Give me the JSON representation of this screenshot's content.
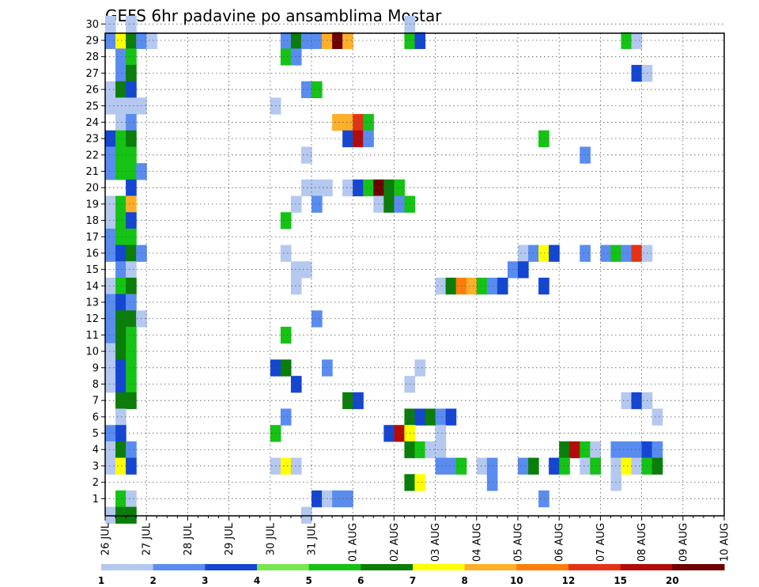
{
  "chart_data": {
    "type": "heatmap",
    "title": "GEFS 6hr padavine po ansamblima Mostar",
    "xlabel": "",
    "ylabel": "",
    "x_tick_labels": [
      "26 JUL",
      "27 JUL",
      "28 JUL",
      "29 JUL",
      "30 JUL",
      "31 JUL",
      "01 AUG",
      "02 AUG",
      "03 AUG",
      "04 AUG",
      "05 AUG",
      "06 AUG",
      "07 AUG",
      "08 AUG",
      "09 AUG",
      "10 AUG"
    ],
    "y_tick_labels": [
      "1",
      "2",
      "3",
      "4",
      "5",
      "6",
      "7",
      "8",
      "9",
      "10",
      "11",
      "12",
      "13",
      "14",
      "15",
      "16",
      "17",
      "18",
      "19",
      "20",
      "21",
      "22",
      "23",
      "24",
      "25",
      "26",
      "27",
      "28",
      "29",
      "30"
    ],
    "xlim_days": [
      0,
      15
    ],
    "ylim": [
      0,
      30
    ],
    "step_hours": 6,
    "grid": true,
    "legend_position": "bottom",
    "levels": [
      1,
      2,
      3,
      4,
      5,
      6,
      7,
      8,
      10,
      12,
      15,
      20
    ],
    "level_colors": [
      "#b4c8f0",
      "#5a8cf0",
      "#1446d2",
      "#78e650",
      "#14c314",
      "#0a7d0a",
      "#ffff00",
      "#ffaf28",
      "#ff7d0a",
      "#e63214",
      "#b40a0a",
      "#6e0000"
    ],
    "cells_format": "[step_index_6h, member_row, color_class]",
    "cells": [
      [
        0,
        29,
        2
      ],
      [
        1,
        29,
        7
      ],
      [
        2,
        29,
        6
      ],
      [
        3,
        29,
        2
      ],
      [
        4,
        29,
        1
      ],
      [
        17,
        29,
        2
      ],
      [
        18,
        29,
        6
      ],
      [
        19,
        29,
        2
      ],
      [
        20,
        29,
        2
      ],
      [
        21,
        29,
        8
      ],
      [
        22,
        29,
        12
      ],
      [
        23,
        29,
        8
      ],
      [
        29,
        29,
        5
      ],
      [
        30,
        29,
        3
      ],
      [
        50,
        29,
        5
      ],
      [
        51,
        29,
        1
      ],
      [
        0,
        30,
        1
      ],
      [
        2,
        30,
        1
      ],
      [
        29,
        30,
        1
      ],
      [
        1,
        28,
        2
      ],
      [
        2,
        28,
        5
      ],
      [
        17,
        28,
        5
      ],
      [
        18,
        28,
        2
      ],
      [
        1,
        27,
        2
      ],
      [
        2,
        27,
        6
      ],
      [
        51,
        27,
        3
      ],
      [
        52,
        27,
        1
      ],
      [
        0,
        26,
        1
      ],
      [
        1,
        26,
        6
      ],
      [
        2,
        26,
        3
      ],
      [
        19,
        26,
        2
      ],
      [
        20,
        26,
        5
      ],
      [
        0,
        25,
        1
      ],
      [
        1,
        25,
        1
      ],
      [
        2,
        25,
        1
      ],
      [
        3,
        25,
        1
      ],
      [
        16,
        25,
        1
      ],
      [
        1,
        24,
        1
      ],
      [
        2,
        24,
        2
      ],
      [
        22,
        24,
        8
      ],
      [
        23,
        24,
        8
      ],
      [
        24,
        24,
        10
      ],
      [
        25,
        24,
        5
      ],
      [
        0,
        23,
        3
      ],
      [
        1,
        23,
        5
      ],
      [
        2,
        23,
        6
      ],
      [
        23,
        23,
        3
      ],
      [
        24,
        23,
        11
      ],
      [
        25,
        23,
        2
      ],
      [
        42,
        23,
        5
      ],
      [
        0,
        22,
        2
      ],
      [
        1,
        22,
        5
      ],
      [
        2,
        22,
        5
      ],
      [
        19,
        22,
        1
      ],
      [
        46,
        22,
        2
      ],
      [
        0,
        21,
        2
      ],
      [
        1,
        21,
        5
      ],
      [
        2,
        21,
        5
      ],
      [
        3,
        21,
        2
      ],
      [
        2,
        20,
        3
      ],
      [
        19,
        20,
        1
      ],
      [
        20,
        20,
        1
      ],
      [
        21,
        20,
        1
      ],
      [
        23,
        20,
        1
      ],
      [
        24,
        20,
        3
      ],
      [
        25,
        20,
        5
      ],
      [
        26,
        20,
        12
      ],
      [
        27,
        20,
        6
      ],
      [
        28,
        20,
        5
      ],
      [
        0,
        19,
        1
      ],
      [
        1,
        19,
        5
      ],
      [
        2,
        19,
        8
      ],
      [
        18,
        19,
        1
      ],
      [
        20,
        19,
        2
      ],
      [
        26,
        19,
        1
      ],
      [
        27,
        19,
        6
      ],
      [
        28,
        19,
        2
      ],
      [
        29,
        19,
        5
      ],
      [
        0,
        18,
        1
      ],
      [
        1,
        18,
        5
      ],
      [
        2,
        18,
        3
      ],
      [
        17,
        18,
        5
      ],
      [
        0,
        17,
        2
      ],
      [
        1,
        17,
        5
      ],
      [
        2,
        17,
        5
      ],
      [
        0,
        16,
        2
      ],
      [
        1,
        16,
        3
      ],
      [
        2,
        16,
        6
      ],
      [
        3,
        16,
        2
      ],
      [
        17,
        16,
        1
      ],
      [
        40,
        16,
        1
      ],
      [
        41,
        16,
        2
      ],
      [
        42,
        16,
        7
      ],
      [
        43,
        16,
        3
      ],
      [
        46,
        16,
        2
      ],
      [
        48,
        16,
        2
      ],
      [
        49,
        16,
        5
      ],
      [
        50,
        16,
        2
      ],
      [
        51,
        16,
        10
      ],
      [
        52,
        16,
        1
      ],
      [
        1,
        15,
        2
      ],
      [
        2,
        15,
        1
      ],
      [
        18,
        15,
        1
      ],
      [
        19,
        15,
        1
      ],
      [
        39,
        15,
        2
      ],
      [
        40,
        15,
        3
      ],
      [
        0,
        14,
        1
      ],
      [
        1,
        14,
        5
      ],
      [
        2,
        14,
        6
      ],
      [
        18,
        14,
        1
      ],
      [
        32,
        14,
        1
      ],
      [
        33,
        14,
        6
      ],
      [
        34,
        14,
        9
      ],
      [
        35,
        14,
        8
      ],
      [
        36,
        14,
        5
      ],
      [
        37,
        14,
        2
      ],
      [
        38,
        14,
        3
      ],
      [
        42,
        14,
        3
      ],
      [
        0,
        13,
        2
      ],
      [
        1,
        13,
        3
      ],
      [
        2,
        13,
        2
      ],
      [
        0,
        12,
        2
      ],
      [
        1,
        12,
        6
      ],
      [
        2,
        12,
        6
      ],
      [
        3,
        12,
        1
      ],
      [
        20,
        12,
        2
      ],
      [
        0,
        11,
        2
      ],
      [
        1,
        11,
        6
      ],
      [
        2,
        11,
        5
      ],
      [
        17,
        11,
        5
      ],
      [
        0,
        10,
        1
      ],
      [
        1,
        10,
        6
      ],
      [
        2,
        10,
        5
      ],
      [
        0,
        9,
        1
      ],
      [
        1,
        9,
        3
      ],
      [
        2,
        9,
        5
      ],
      [
        16,
        9,
        3
      ],
      [
        17,
        9,
        6
      ],
      [
        21,
        9,
        2
      ],
      [
        30,
        9,
        1
      ],
      [
        0,
        8,
        1
      ],
      [
        1,
        8,
        3
      ],
      [
        2,
        8,
        5
      ],
      [
        18,
        8,
        3
      ],
      [
        29,
        8,
        1
      ],
      [
        1,
        7,
        6
      ],
      [
        2,
        7,
        6
      ],
      [
        23,
        7,
        6
      ],
      [
        24,
        7,
        3
      ],
      [
        50,
        7,
        1
      ],
      [
        51,
        7,
        3
      ],
      [
        52,
        7,
        1
      ],
      [
        1,
        6,
        1
      ],
      [
        17,
        6,
        2
      ],
      [
        29,
        6,
        6
      ],
      [
        30,
        6,
        3
      ],
      [
        31,
        6,
        6
      ],
      [
        32,
        6,
        2
      ],
      [
        33,
        6,
        3
      ],
      [
        53,
        6,
        1
      ],
      [
        0,
        5,
        2
      ],
      [
        1,
        5,
        3
      ],
      [
        16,
        5,
        5
      ],
      [
        27,
        5,
        3
      ],
      [
        28,
        5,
        11
      ],
      [
        29,
        5,
        7
      ],
      [
        32,
        5,
        1
      ],
      [
        0,
        4,
        1
      ],
      [
        1,
        4,
        6
      ],
      [
        2,
        4,
        2
      ],
      [
        29,
        4,
        6
      ],
      [
        30,
        4,
        5
      ],
      [
        31,
        4,
        1
      ],
      [
        32,
        4,
        1
      ],
      [
        44,
        4,
        6
      ],
      [
        45,
        4,
        11
      ],
      [
        46,
        4,
        5
      ],
      [
        47,
        4,
        1
      ],
      [
        49,
        4,
        2
      ],
      [
        50,
        4,
        2
      ],
      [
        51,
        4,
        2
      ],
      [
        52,
        4,
        3
      ],
      [
        53,
        4,
        2
      ],
      [
        0,
        3,
        1
      ],
      [
        1,
        3,
        7
      ],
      [
        2,
        3,
        3
      ],
      [
        16,
        3,
        1
      ],
      [
        17,
        3,
        7
      ],
      [
        18,
        3,
        1
      ],
      [
        32,
        3,
        2
      ],
      [
        33,
        3,
        2
      ],
      [
        34,
        3,
        5
      ],
      [
        36,
        3,
        1
      ],
      [
        37,
        3,
        2
      ],
      [
        40,
        3,
        2
      ],
      [
        41,
        3,
        6
      ],
      [
        43,
        3,
        3
      ],
      [
        44,
        3,
        5
      ],
      [
        46,
        3,
        1
      ],
      [
        47,
        3,
        5
      ],
      [
        49,
        3,
        1
      ],
      [
        50,
        3,
        7
      ],
      [
        51,
        3,
        1
      ],
      [
        52,
        3,
        5
      ],
      [
        53,
        3,
        6
      ],
      [
        29,
        2,
        6
      ],
      [
        30,
        2,
        7
      ],
      [
        37,
        2,
        2
      ],
      [
        49,
        2,
        1
      ],
      [
        1,
        1,
        5
      ],
      [
        2,
        1,
        1
      ],
      [
        20,
        1,
        3
      ],
      [
        21,
        1,
        1
      ],
      [
        22,
        1,
        2
      ],
      [
        23,
        1,
        2
      ],
      [
        42,
        1,
        2
      ],
      [
        0,
        0,
        1
      ],
      [
        1,
        0,
        6
      ],
      [
        2,
        0,
        6
      ],
      [
        19,
        0,
        1
      ]
    ]
  }
}
